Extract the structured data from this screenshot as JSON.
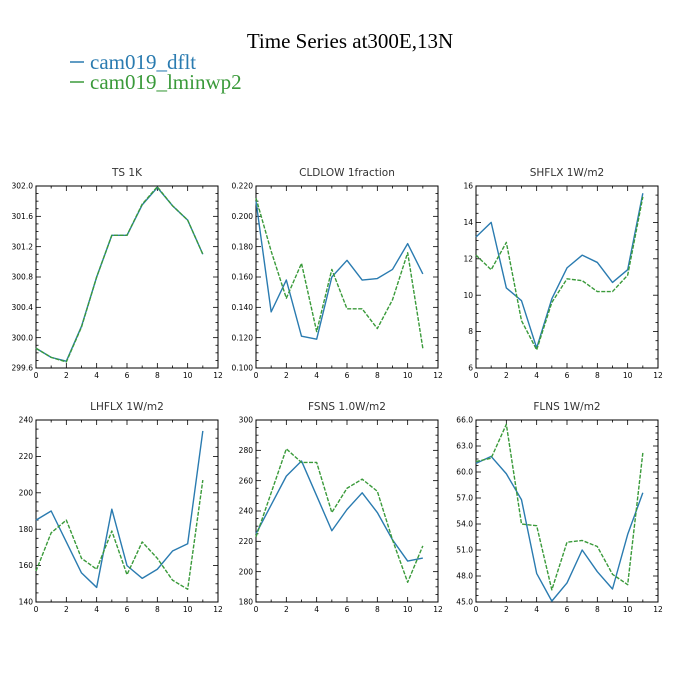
{
  "figure_title": "Time Series at300E,13N",
  "colors": {
    "dflt": "#2a7bb0",
    "lminwp2": "#3a9a3a"
  },
  "legend": [
    {
      "label": "cam019_dflt",
      "color": "#2a7bb0",
      "dash": false
    },
    {
      "label": "cam019_lminwp2",
      "color": "#3a9a3a",
      "dash": true
    }
  ],
  "chart_data": [
    {
      "type": "line",
      "title": "TS  1K",
      "xlim": [
        0,
        12
      ],
      "xticks": [
        0,
        2,
        4,
        6,
        8,
        10,
        12
      ],
      "ylim": [
        299.6,
        302.0
      ],
      "yticks": [
        "299.6",
        "300.0",
        "300.4",
        "300.8",
        "301.2",
        "301.6",
        "302.0"
      ],
      "x": [
        0,
        1,
        2,
        3,
        4,
        5,
        6,
        7,
        8,
        9,
        10,
        11
      ],
      "series": [
        {
          "name": "cam019_dflt",
          "values": [
            299.86,
            299.74,
            299.69,
            300.15,
            300.8,
            301.35,
            301.35,
            301.75,
            301.98,
            301.74,
            301.55,
            301.1
          ]
        },
        {
          "name": "cam019_lminwp2",
          "values": [
            299.86,
            299.74,
            299.68,
            300.14,
            300.8,
            301.35,
            301.35,
            301.76,
            301.99,
            301.74,
            301.55,
            301.1
          ]
        }
      ]
    },
    {
      "type": "line",
      "title": "CLDLOW  1fraction",
      "xlim": [
        0,
        12
      ],
      "xticks": [
        0,
        2,
        4,
        6,
        8,
        10,
        12
      ],
      "ylim": [
        0.1,
        0.22
      ],
      "yticks": [
        "0.100",
        "0.120",
        "0.140",
        "0.160",
        "0.180",
        "0.200",
        "0.220"
      ],
      "x": [
        0,
        1,
        2,
        3,
        4,
        5,
        6,
        7,
        8,
        9,
        10,
        11
      ],
      "series": [
        {
          "name": "cam019_dflt",
          "values": [
            0.21,
            0.137,
            0.158,
            0.121,
            0.119,
            0.16,
            0.171,
            0.158,
            0.159,
            0.165,
            0.182,
            0.162
          ]
        },
        {
          "name": "cam019_lminwp2",
          "values": [
            0.212,
            0.177,
            0.146,
            0.169,
            0.124,
            0.165,
            0.139,
            0.139,
            0.126,
            0.145,
            0.176,
            0.113
          ]
        }
      ]
    },
    {
      "type": "line",
      "title": "SHFLX  1W/m2",
      "xlim": [
        0,
        12
      ],
      "xticks": [
        0,
        2,
        4,
        6,
        8,
        10,
        12
      ],
      "ylim": [
        6,
        16
      ],
      "yticks": [
        "6",
        "8",
        "10",
        "12",
        "14",
        "16"
      ],
      "x": [
        0,
        1,
        2,
        3,
        4,
        5,
        6,
        7,
        8,
        9,
        10,
        11
      ],
      "series": [
        {
          "name": "cam019_dflt",
          "values": [
            13.2,
            14.0,
            10.4,
            9.7,
            7.1,
            9.8,
            11.5,
            12.2,
            11.8,
            10.7,
            11.4,
            15.6
          ]
        },
        {
          "name": "cam019_lminwp2",
          "values": [
            12.2,
            11.4,
            12.9,
            8.6,
            7.0,
            9.6,
            10.9,
            10.8,
            10.2,
            10.2,
            11.1,
            15.4
          ]
        }
      ]
    },
    {
      "type": "line",
      "title": "LHFLX  1W/m2",
      "xlim": [
        0,
        12
      ],
      "xticks": [
        0,
        2,
        4,
        6,
        8,
        10,
        12
      ],
      "ylim": [
        140,
        240
      ],
      "yticks": [
        "140",
        "160",
        "180",
        "200",
        "220",
        "240"
      ],
      "x": [
        0,
        1,
        2,
        3,
        4,
        5,
        6,
        7,
        8,
        9,
        10,
        11
      ],
      "series": [
        {
          "name": "cam019_dflt",
          "values": [
            185,
            190,
            173,
            156,
            148,
            191,
            160,
            153,
            158,
            168,
            172,
            234
          ]
        },
        {
          "name": "cam019_lminwp2",
          "values": [
            157,
            178,
            185,
            164,
            158,
            179,
            155,
            173,
            164,
            152,
            147,
            207
          ]
        }
      ]
    },
    {
      "type": "line",
      "title": "FSNS  1.0W/m2",
      "xlim": [
        0,
        12
      ],
      "xticks": [
        0,
        2,
        4,
        6,
        8,
        10,
        12
      ],
      "ylim": [
        180,
        300
      ],
      "yticks": [
        "180",
        "200",
        "220",
        "240",
        "260",
        "280",
        "300"
      ],
      "x": [
        0,
        1,
        2,
        3,
        4,
        5,
        6,
        7,
        8,
        9,
        10,
        11
      ],
      "series": [
        {
          "name": "cam019_dflt",
          "values": [
            225,
            244,
            263,
            273,
            250,
            227,
            241,
            252,
            239,
            221,
            207,
            209
          ]
        },
        {
          "name": "cam019_lminwp2",
          "values": [
            223,
            252,
            281,
            272,
            272,
            239,
            255,
            261,
            253,
            221,
            193,
            217
          ]
        }
      ]
    },
    {
      "type": "line",
      "title": "FLNS  1W/m2",
      "xlim": [
        0,
        12
      ],
      "xticks": [
        0,
        2,
        4,
        6,
        8,
        10,
        12
      ],
      "ylim": [
        45.0,
        66.0
      ],
      "yticks": [
        "45.0",
        "48.0",
        "51.0",
        "54.0",
        "57.0",
        "60.0",
        "63.0",
        "66.0"
      ],
      "x": [
        0,
        1,
        2,
        3,
        4,
        5,
        6,
        7,
        8,
        9,
        10,
        11
      ],
      "series": [
        {
          "name": "cam019_dflt",
          "values": [
            61.0,
            61.8,
            59.8,
            56.8,
            48.3,
            45.1,
            47.2,
            51.0,
            48.5,
            46.5,
            52.8,
            57.6
          ]
        },
        {
          "name": "cam019_lminwp2",
          "values": [
            61.2,
            61.6,
            65.5,
            54.0,
            53.8,
            46.4,
            51.9,
            52.1,
            51.4,
            48.2,
            47.0,
            62.2
          ]
        }
      ]
    }
  ]
}
